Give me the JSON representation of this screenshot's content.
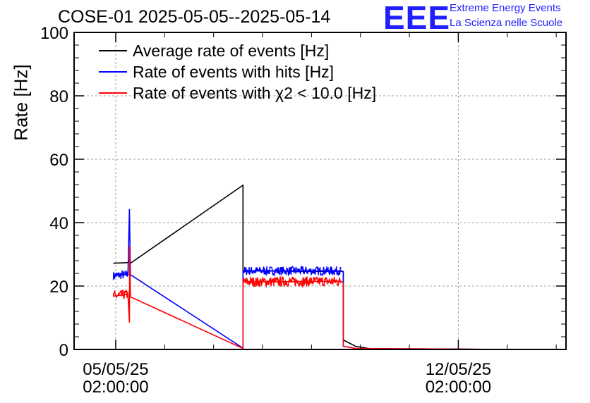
{
  "header": {
    "title": "COSE-01 2025-05-05--2025-05-14",
    "logo_text": "EEE",
    "logo_line1": "Extreme Energy Events",
    "logo_line2": "La Scienza nelle Scuole"
  },
  "chart_data": {
    "type": "line",
    "ylabel": "Rate [Hz]",
    "ylim": [
      0,
      100
    ],
    "y_ticks": [
      "0",
      "20",
      "40",
      "60",
      "80",
      "100"
    ],
    "xlim_days": [
      -0.85,
      9.2
    ],
    "x_ticks": [
      {
        "day": 0,
        "line1": "05/05/25",
        "line2": "02:00:00"
      },
      {
        "day": 7,
        "line1": "12/05/25",
        "line2": "02:00:00"
      }
    ],
    "grid": true,
    "legend_placement": "top-left",
    "series": [
      {
        "name": "Average rate of events [Hz]",
        "color": "#000000",
        "points": [
          [
            -0.05,
            27.2
          ],
          [
            0.15,
            27.3
          ],
          [
            0.25,
            27.4
          ],
          [
            0.28,
            28
          ],
          [
            0.3,
            27.2
          ],
          [
            2.6,
            51.8
          ],
          [
            2.6,
            24.5
          ],
          [
            2.8,
            24.8
          ],
          [
            4.0,
            24.6
          ],
          [
            4.6,
            24.7
          ],
          [
            4.65,
            24.5
          ],
          [
            4.65,
            3.0
          ],
          [
            4.9,
            1.0
          ],
          [
            5.2,
            0.2
          ],
          [
            8.0,
            0.0
          ]
        ]
      },
      {
        "name": "Rate of events with hits [Hz]",
        "color": "#0000ff",
        "noise": 1.4,
        "points": [
          [
            -0.05,
            23.3
          ],
          [
            0.25,
            23.6
          ],
          [
            0.28,
            44.3
          ],
          [
            0.3,
            23.6
          ],
          [
            2.6,
            0.4
          ],
          [
            2.6,
            24.8
          ],
          [
            4.6,
            24.8
          ],
          [
            4.65,
            24.6
          ],
          [
            4.65,
            1.0
          ],
          [
            4.9,
            0.3
          ],
          [
            8.0,
            0.0
          ]
        ]
      },
      {
        "name": "Rate of events with χ2 < 10.0 [Hz]",
        "color": "#ff0000",
        "noise": 1.6,
        "points": [
          [
            -0.05,
            16.8
          ],
          [
            0.25,
            17.4
          ],
          [
            0.28,
            8.5
          ],
          [
            0.285,
            32.5
          ],
          [
            0.3,
            16.6
          ],
          [
            2.6,
            0.3
          ],
          [
            2.6,
            21.3
          ],
          [
            4.6,
            21.5
          ],
          [
            4.65,
            21.0
          ],
          [
            4.65,
            1.0
          ],
          [
            4.9,
            0.3
          ],
          [
            8.0,
            0.0
          ]
        ]
      }
    ]
  }
}
